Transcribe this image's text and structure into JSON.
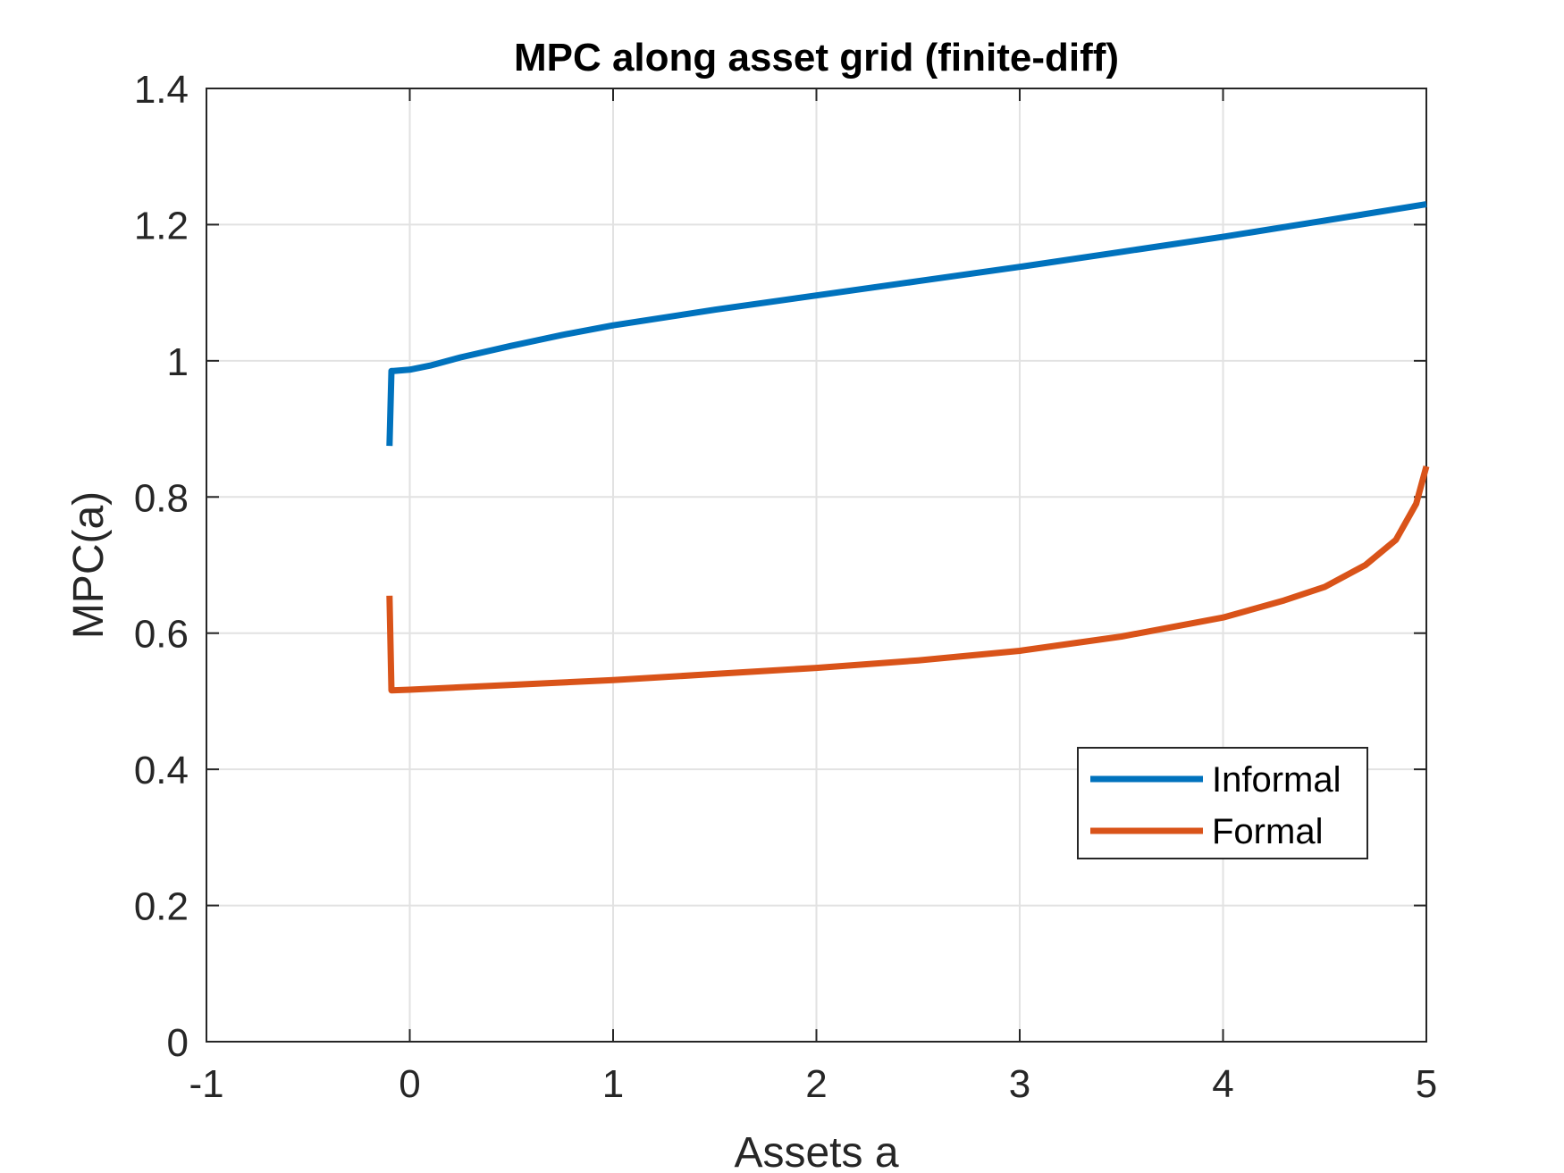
{
  "chart_data": {
    "type": "line",
    "title": "MPC along asset grid (finite-diff)",
    "xlabel": "Assets a",
    "ylabel": "MPC(a)",
    "xlim": [
      -1,
      5
    ],
    "ylim": [
      0,
      1.4
    ],
    "xticks": [
      -1,
      0,
      1,
      2,
      3,
      4,
      5
    ],
    "xtick_labels": [
      "-1",
      "0",
      "1",
      "2",
      "3",
      "4",
      "5"
    ],
    "yticks": [
      0,
      0.2,
      0.4,
      0.6,
      0.8,
      1.0,
      1.2,
      1.4
    ],
    "ytick_labels": [
      "0",
      "0.2",
      "0.4",
      "0.6",
      "0.8",
      "1",
      "1.2",
      "1.4"
    ],
    "grid": true,
    "legend_position": "lower-right",
    "series": [
      {
        "name": "Informal",
        "color": "#0072BD",
        "x": [
          -0.1,
          -0.09,
          -0.08,
          0.0,
          0.1,
          0.25,
          0.5,
          0.75,
          1.0,
          1.5,
          2.0,
          2.5,
          3.0,
          3.5,
          4.0,
          4.5,
          5.0
        ],
        "y": [
          0.875,
          0.985,
          0.985,
          0.987,
          0.993,
          1.005,
          1.022,
          1.038,
          1.052,
          1.075,
          1.096,
          1.117,
          1.138,
          1.16,
          1.182,
          1.206,
          1.23
        ]
      },
      {
        "name": "Formal",
        "color": "#D95319",
        "x": [
          -0.1,
          -0.09,
          0.0,
          0.5,
          1.0,
          1.5,
          2.0,
          2.5,
          3.0,
          3.5,
          4.0,
          4.3,
          4.5,
          4.7,
          4.85,
          4.95,
          5.0
        ],
        "y": [
          0.655,
          0.516,
          0.517,
          0.524,
          0.531,
          0.54,
          0.549,
          0.56,
          0.574,
          0.595,
          0.623,
          0.648,
          0.668,
          0.7,
          0.737,
          0.79,
          0.845
        ]
      }
    ]
  }
}
